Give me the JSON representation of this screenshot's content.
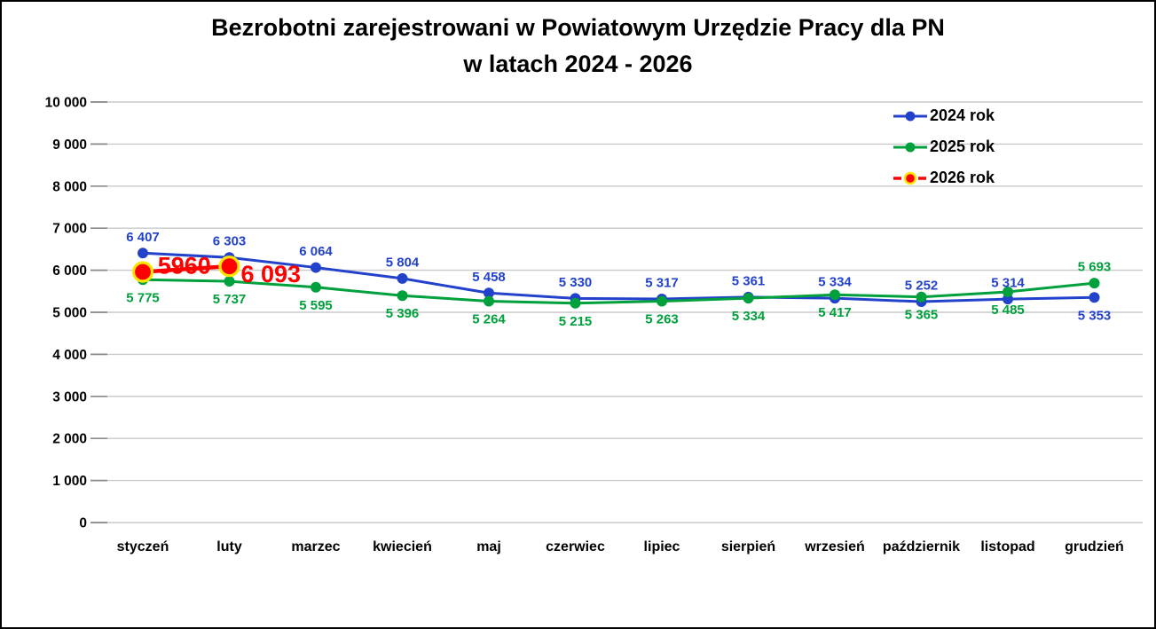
{
  "chart_data": {
    "type": "line",
    "title_line1": "Bezrobotni zarejestrowani w Powiatowym Urzędzie Pracy dla PN",
    "title_line2": "w latach 2024 - 2026",
    "categories": [
      "styczeń",
      "luty",
      "marzec",
      "kwiecień",
      "maj",
      "czerwiec",
      "lipiec",
      "sierpień",
      "wrzesień",
      "październik",
      "listopad",
      "grudzień"
    ],
    "xlabel": "",
    "ylabel": "",
    "y_axis": {
      "min": 0,
      "max": 10000,
      "step": 1000,
      "tick_labels": [
        "0",
        "1 000",
        "2 000",
        "3 000",
        "4 000",
        "5 000",
        "6 000",
        "7 000",
        "8 000",
        "9 000",
        "10 000"
      ]
    },
    "grid": true,
    "legend_position": "top-right",
    "series": [
      {
        "name": "2024 rok",
        "color": "#2342CB",
        "marker": "circle",
        "values": [
          6407,
          6303,
          6064,
          5804,
          5458,
          5330,
          5317,
          5361,
          5334,
          5252,
          5314,
          5353
        ],
        "labels": [
          "6 407",
          "6 303",
          "6 064",
          "5 804",
          "5 458",
          "5 330",
          "5 317",
          "5 361",
          "5 334",
          "5 252",
          "5 314",
          "5 353"
        ],
        "label_side": "above",
        "label_overrides": {
          "11": "below"
        }
      },
      {
        "name": "2025 rok",
        "color": "#00A03C",
        "marker": "circle",
        "values": [
          5775,
          5737,
          5595,
          5396,
          5264,
          5215,
          5263,
          5334,
          5417,
          5365,
          5485,
          5693
        ],
        "labels": [
          "5 775",
          "5 737",
          "5 595",
          "5 396",
          "5 264",
          "5 215",
          "5 263",
          "5 334",
          "5 417",
          "5 365",
          "5 485",
          "5 693"
        ],
        "label_side": "below",
        "label_overrides": {
          "11": "above"
        }
      },
      {
        "name": "2026 rok",
        "color": "#FF0000",
        "marker": "circle-ring",
        "marker_ring_color": "#FFE600",
        "legend_line_dashed": true,
        "values": [
          5960,
          6093,
          null,
          null,
          null,
          null,
          null,
          null,
          null,
          null,
          null,
          null
        ],
        "labels": [
          "5960",
          "6 093"
        ],
        "label_style": "big-red"
      }
    ]
  },
  "colors": {
    "gridline": "#C9C9C9",
    "tick": "#8A8A8A",
    "axis_text": "#000000",
    "background": "#FFFFFF",
    "border": "#000000"
  }
}
